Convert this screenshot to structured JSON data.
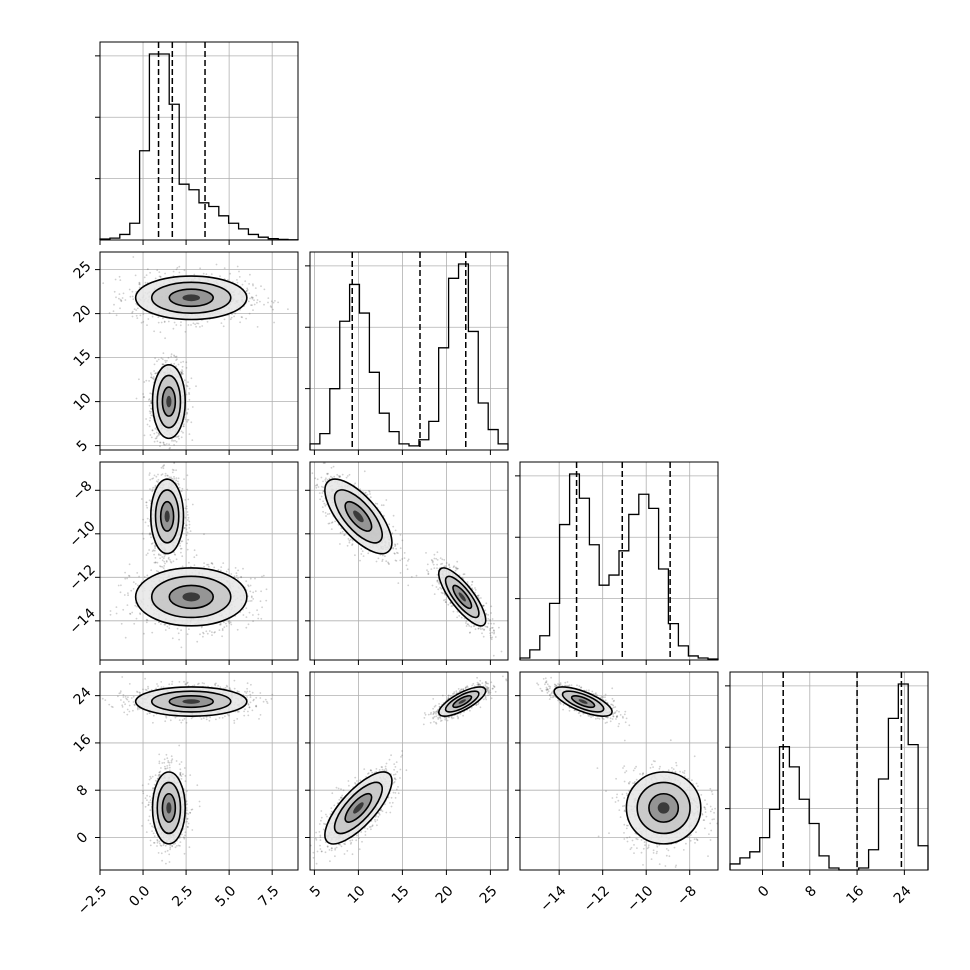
{
  "figure": {
    "type": "corner-plot"
  },
  "chart_data": {
    "type": "corner",
    "params": [
      {
        "name": "",
        "lim": [
          -2.5,
          9.0
        ],
        "ticks": [
          -2.5,
          0.0,
          2.5,
          5.0,
          7.5
        ],
        "tick_labels": [
          "−2.5",
          "0.0",
          "2.5",
          "5.0",
          "7.5"
        ],
        "quantiles": [
          0.9,
          1.7,
          3.6
        ]
      },
      {
        "name": "",
        "lim": [
          4.5,
          27.0
        ],
        "ticks": [
          5,
          10,
          15,
          20,
          25
        ],
        "tick_labels": [
          "5",
          "10",
          "15",
          "20",
          "25"
        ],
        "quantiles": [
          9.3,
          17.0,
          22.2
        ]
      },
      {
        "name": "",
        "lim": [
          -15.8,
          -6.7
        ],
        "ticks": [
          -14,
          -12,
          -10,
          -8
        ],
        "tick_labels": [
          "−14",
          "−12",
          "−10",
          "−8"
        ],
        "quantiles": [
          -13.2,
          -11.1,
          -8.9
        ]
      },
      {
        "name": "",
        "lim": [
          -5.5,
          28.0
        ],
        "ticks": [
          0,
          8,
          16,
          24
        ],
        "tick_labels": [
          "0",
          "8",
          "16",
          "24"
        ],
        "quantiles": [
          3.5,
          16.0,
          23.5
        ]
      }
    ],
    "histograms": [
      {
        "param": 0,
        "edges": [
          -2.5,
          -1.92,
          -1.35,
          -0.77,
          -0.2,
          0.37,
          0.95,
          1.52,
          2.1,
          2.67,
          3.25,
          3.82,
          4.4,
          4.97,
          5.55,
          6.12,
          6.7,
          7.27,
          7.85,
          8.42,
          9.0
        ],
        "counts": [
          0.5,
          1,
          3,
          9,
          48,
          100,
          100,
          73,
          30,
          27,
          20,
          18,
          13,
          9,
          6,
          3,
          1.5,
          0.7,
          0.3,
          0.1
        ]
      },
      {
        "param": 1,
        "edges": [
          4.5,
          5.62,
          6.75,
          7.88,
          9.0,
          10.12,
          11.25,
          12.38,
          13.5,
          14.62,
          15.75,
          16.88,
          18.0,
          19.12,
          20.25,
          21.38,
          22.5,
          23.62,
          24.75,
          25.88,
          27.0
        ],
        "counts": [
          3,
          8,
          30,
          63,
          81,
          67,
          38,
          18,
          9,
          3,
          2,
          5,
          14,
          50,
          84,
          91,
          58,
          23,
          10,
          3
        ]
      },
      {
        "param": 2,
        "edges": [
          -15.8,
          -15.35,
          -14.89,
          -14.44,
          -13.98,
          -13.52,
          -13.07,
          -12.61,
          -12.16,
          -11.71,
          -11.25,
          -10.8,
          -10.34,
          -9.88,
          -9.43,
          -8.98,
          -8.52,
          -8.06,
          -7.61,
          -7.16,
          -6.7
        ],
        "counts": [
          1,
          5,
          12,
          28,
          67,
          92,
          80,
          57,
          37,
          42,
          54,
          72,
          82,
          75,
          45,
          18,
          7,
          2,
          1,
          0.5
        ]
      },
      {
        "param": 3,
        "edges": [
          -5.5,
          -3.82,
          -2.15,
          -0.47,
          1.2,
          2.88,
          4.55,
          6.22,
          7.9,
          9.57,
          11.25,
          12.93,
          14.6,
          16.28,
          17.95,
          19.63,
          21.3,
          22.98,
          24.65,
          26.33,
          28.0
        ],
        "counts": [
          3,
          6,
          9,
          16,
          30,
          61,
          51,
          35,
          23,
          7,
          1,
          0,
          0,
          1,
          10,
          45,
          75,
          92,
          62,
          12
        ]
      }
    ],
    "scatter_pairs": [
      {
        "x": 0,
        "y": 1,
        "clusters": [
          {
            "cx": 1.5,
            "cy": 10.0,
            "sx": 0.5,
            "sy": 2.2,
            "r": 0.0
          },
          {
            "cx": 2.8,
            "cy": 21.8,
            "sx": 1.7,
            "sy": 1.3,
            "r": 0.0
          }
        ]
      },
      {
        "x": 0,
        "y": 2,
        "clusters": [
          {
            "cx": 1.4,
            "cy": -9.2,
            "sx": 0.5,
            "sy": 0.9,
            "r": 0.0
          },
          {
            "cx": 2.8,
            "cy": -12.9,
            "sx": 1.7,
            "sy": 0.7,
            "r": 0.0
          }
        ]
      },
      {
        "x": 0,
        "y": 3,
        "clusters": [
          {
            "cx": 1.5,
            "cy": 5.0,
            "sx": 0.5,
            "sy": 3.2,
            "r": 0.0
          },
          {
            "cx": 2.8,
            "cy": 23.0,
            "sx": 1.7,
            "sy": 1.3,
            "r": 0.0
          }
        ]
      },
      {
        "x": 1,
        "y": 2,
        "clusters": [
          {
            "cx": 10.0,
            "cy": -9.2,
            "sx": 2.0,
            "sy": 0.9,
            "r": -0.7
          },
          {
            "cx": 21.8,
            "cy": -12.9,
            "sx": 1.4,
            "sy": 0.7,
            "r": -0.8
          }
        ]
      },
      {
        "x": 1,
        "y": 3,
        "clusters": [
          {
            "cx": 10.0,
            "cy": 5.0,
            "sx": 2.0,
            "sy": 3.2,
            "r": 0.75
          },
          {
            "cx": 21.8,
            "cy": 23.0,
            "sx": 1.4,
            "sy": 1.3,
            "r": 0.75
          }
        ]
      },
      {
        "x": 2,
        "y": 3,
        "clusters": [
          {
            "cx": -12.9,
            "cy": 23.0,
            "sx": 0.7,
            "sy": 1.3,
            "r": -0.7
          },
          {
            "cx": -9.2,
            "cy": 5.0,
            "sx": 0.9,
            "sy": 3.2,
            "r": 0.0
          }
        ]
      }
    ],
    "grid": true,
    "colors": {
      "line": "#000000",
      "points": "#555555",
      "grid": "#b0b0b0"
    }
  }
}
